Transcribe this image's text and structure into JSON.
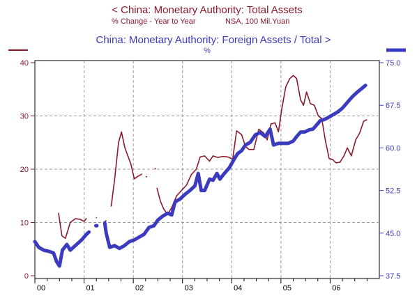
{
  "colors": {
    "left": "#8b1a2b",
    "right": "#3b3bbf"
  },
  "chart_data": {
    "type": "line",
    "title_left": "<  China: Monetary Authority: Total Assets",
    "subtitle_left_1": "% Change - Year to Year",
    "subtitle_left_2": "NSA, 100 Mil.Yuan",
    "title_right": "China: Monetary Authority: Foreign Assets / Total  >",
    "subtitle_right": "%",
    "x_ticks": [
      "00",
      "01",
      "02",
      "03",
      "04",
      "05",
      "06"
    ],
    "x_range": [
      2000.0,
      2007.0
    ],
    "y_left": {
      "range": [
        0,
        40
      ],
      "ticks": [
        "0",
        "10",
        "20",
        "30",
        "40"
      ]
    },
    "y_right": {
      "range": [
        37.5,
        75.0
      ],
      "ticks": [
        "37.5",
        "45.0",
        "52.5",
        "60.0",
        "67.5",
        "75.0"
      ]
    },
    "grid": true,
    "series": [
      {
        "name": "China: Monetary Authority: Total Assets",
        "axis": "left",
        "color": "#8b1a2b",
        "segments": [
          [
            [
              2000.48,
              11.8
            ],
            [
              2000.55,
              7.5
            ],
            [
              2000.62,
              7.0
            ],
            [
              2000.72,
              10.0
            ],
            [
              2000.82,
              10.7
            ],
            [
              2000.92,
              10.6
            ],
            [
              2001.0,
              10.2
            ],
            [
              2001.05,
              10.8
            ]
          ],
          [
            [
              2001.24,
              10.9
            ],
            [
              2001.26,
              10.9
            ]
          ],
          [
            [
              2001.42,
              10.0
            ],
            [
              2001.45,
              10.4
            ]
          ],
          [
            [
              2001.55,
              13.0
            ],
            [
              2001.62,
              18.0
            ],
            [
              2001.7,
              25.0
            ],
            [
              2001.76,
              27.0
            ],
            [
              2001.83,
              24.0
            ],
            [
              2001.95,
              21.0
            ],
            [
              2002.02,
              18.2
            ],
            [
              2002.1,
              18.7
            ],
            [
              2002.18,
              19.1
            ]
          ],
          [
            [
              2002.25,
              18.6
            ],
            [
              2002.28,
              18.6
            ]
          ],
          [
            [
              2002.44,
              20.2
            ],
            [
              2002.46,
              20.0
            ]
          ],
          [
            [
              2002.48,
              16.5
            ],
            [
              2002.55,
              14.0
            ],
            [
              2002.62,
              12.5
            ],
            [
              2002.7,
              11.5
            ],
            [
              2002.78,
              12.8
            ],
            [
              2002.88,
              15.0
            ],
            [
              2002.98,
              16.0
            ],
            [
              2003.08,
              17.0
            ],
            [
              2003.18,
              19.0
            ],
            [
              2003.28,
              20.0
            ],
            [
              2003.36,
              22.3
            ],
            [
              2003.45,
              22.5
            ],
            [
              2003.55,
              21.5
            ],
            [
              2003.62,
              22.5
            ],
            [
              2003.72,
              22.2
            ],
            [
              2003.82,
              22.4
            ],
            [
              2003.92,
              22.3
            ],
            [
              2004.02,
              21.9
            ],
            [
              2004.1,
              27.2
            ],
            [
              2004.2,
              26.5
            ],
            [
              2004.28,
              24.3
            ],
            [
              2004.35,
              23.7
            ],
            [
              2004.45,
              23.7
            ],
            [
              2004.55,
              27.5
            ],
            [
              2004.65,
              26.8
            ],
            [
              2004.72,
              25.5
            ],
            [
              2004.8,
              28.5
            ],
            [
              2004.88,
              28.7
            ],
            [
              2004.95,
              27.0
            ],
            [
              2005.02,
              31.5
            ],
            [
              2005.1,
              35.5
            ],
            [
              2005.18,
              37.0
            ],
            [
              2005.25,
              37.6
            ],
            [
              2005.32,
              37.0
            ],
            [
              2005.4,
              33.0
            ],
            [
              2005.46,
              32.0
            ],
            [
              2005.52,
              34.5
            ],
            [
              2005.6,
              32.3
            ],
            [
              2005.68,
              32.0
            ],
            [
              2005.76,
              30.0
            ],
            [
              2005.83,
              29.5
            ],
            [
              2005.9,
              25.5
            ],
            [
              2005.98,
              22.0
            ],
            [
              2006.05,
              21.8
            ],
            [
              2006.12,
              21.2
            ],
            [
              2006.2,
              21.3
            ],
            [
              2006.28,
              22.5
            ],
            [
              2006.35,
              24.0
            ],
            [
              2006.43,
              22.5
            ],
            [
              2006.52,
              25.5
            ],
            [
              2006.6,
              26.8
            ],
            [
              2006.68,
              29.0
            ],
            [
              2006.75,
              29.3
            ]
          ]
        ]
      },
      {
        "name": "China: Monetary Authority: Foreign Assets / Total",
        "axis": "right",
        "color": "#3b3bbf",
        "segments": [
          [
            [
              2000.0,
              43.5
            ],
            [
              2000.08,
              42.5
            ],
            [
              2000.18,
              42.0
            ],
            [
              2000.28,
              41.8
            ],
            [
              2000.38,
              41.5
            ],
            [
              2000.44,
              40.0
            ],
            [
              2000.5,
              39.2
            ],
            [
              2000.56,
              42.0
            ],
            [
              2000.65,
              43.0
            ],
            [
              2000.72,
              42.0
            ],
            [
              2000.82,
              42.8
            ],
            [
              2000.95,
              43.8
            ],
            [
              2001.05,
              44.8
            ],
            [
              2001.1,
              45.2
            ]
          ],
          [
            [
              2001.24,
              46.3
            ],
            [
              2001.26,
              46.3
            ]
          ],
          [
            [
              2001.42,
              46.8
            ],
            [
              2001.45,
              45.0
            ],
            [
              2001.52,
              42.5
            ],
            [
              2001.62,
              42.8
            ],
            [
              2001.72,
              42.3
            ],
            [
              2001.82,
              42.8
            ],
            [
              2001.92,
              43.5
            ],
            [
              2002.02,
              43.8
            ],
            [
              2002.12,
              44.3
            ],
            [
              2002.22,
              44.8
            ],
            [
              2002.32,
              46.0
            ],
            [
              2002.42,
              46.3
            ],
            [
              2002.5,
              47.3
            ],
            [
              2002.6,
              48.0
            ],
            [
              2002.7,
              48.5
            ],
            [
              2002.78,
              48.2
            ],
            [
              2002.85,
              50.5
            ],
            [
              2002.95,
              51.0
            ],
            [
              2003.05,
              51.8
            ],
            [
              2003.15,
              52.5
            ],
            [
              2003.25,
              53.3
            ],
            [
              2003.32,
              55.5
            ],
            [
              2003.38,
              52.5
            ],
            [
              2003.45,
              52.5
            ],
            [
              2003.55,
              54.5
            ],
            [
              2003.62,
              54.3
            ],
            [
              2003.7,
              55.5
            ],
            [
              2003.76,
              54.5
            ],
            [
              2003.85,
              55.5
            ],
            [
              2003.95,
              56.5
            ],
            [
              2004.05,
              58.0
            ],
            [
              2004.12,
              59.0
            ],
            [
              2004.2,
              59.5
            ],
            [
              2004.28,
              60.5
            ],
            [
              2004.38,
              61.0
            ],
            [
              2004.48,
              62.3
            ],
            [
              2004.58,
              62.7
            ],
            [
              2004.68,
              62.0
            ],
            [
              2004.78,
              63.3
            ],
            [
              2004.85,
              60.5
            ],
            [
              2004.95,
              60.8
            ],
            [
              2005.05,
              60.8
            ],
            [
              2005.15,
              60.8
            ],
            [
              2005.25,
              61.2
            ],
            [
              2005.32,
              62.0
            ],
            [
              2005.4,
              62.8
            ],
            [
              2005.48,
              62.8
            ],
            [
              2005.58,
              63.2
            ],
            [
              2005.65,
              63.3
            ],
            [
              2005.72,
              64.0
            ],
            [
              2005.8,
              64.8
            ],
            [
              2005.88,
              65.0
            ],
            [
              2005.95,
              65.3
            ],
            [
              2006.05,
              65.8
            ],
            [
              2006.15,
              66.3
            ],
            [
              2006.25,
              67.0
            ],
            [
              2006.35,
              68.0
            ],
            [
              2006.45,
              69.0
            ],
            [
              2006.55,
              69.8
            ],
            [
              2006.65,
              70.5
            ],
            [
              2006.72,
              71.0
            ]
          ]
        ]
      }
    ]
  }
}
